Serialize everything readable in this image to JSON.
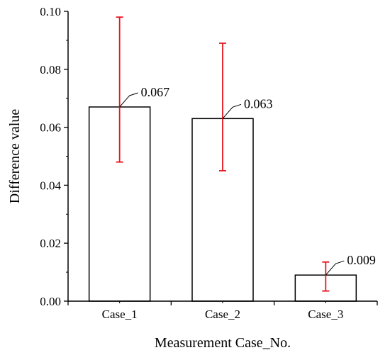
{
  "chart_data": {
    "type": "bar",
    "title": "",
    "xlabel": "Measurement Case_No.",
    "ylabel": "Difference value",
    "categories": [
      "Case_1",
      "Case_2",
      "Case_3"
    ],
    "series": [
      {
        "values": [
          0.067,
          0.063,
          0.009
        ],
        "error_low": [
          0.048,
          0.045,
          0.0035
        ],
        "error_high": [
          0.098,
          0.089,
          0.0135
        ],
        "data_labels": [
          "0.067",
          "0.063",
          "0.009"
        ]
      }
    ],
    "ylim": [
      0,
      0.1
    ],
    "yticks": [
      0.0,
      0.02,
      0.04,
      0.06,
      0.08,
      0.1
    ],
    "ytick_labels": [
      "0.00",
      "0.02",
      "0.04",
      "0.06",
      "0.08",
      "0.10"
    ],
    "grid": false,
    "legend": "none",
    "colors": {
      "bar_fill": "#ffffff",
      "bar_stroke": "#000000",
      "error_bar": "#e8141e",
      "axis": "#000000"
    }
  }
}
